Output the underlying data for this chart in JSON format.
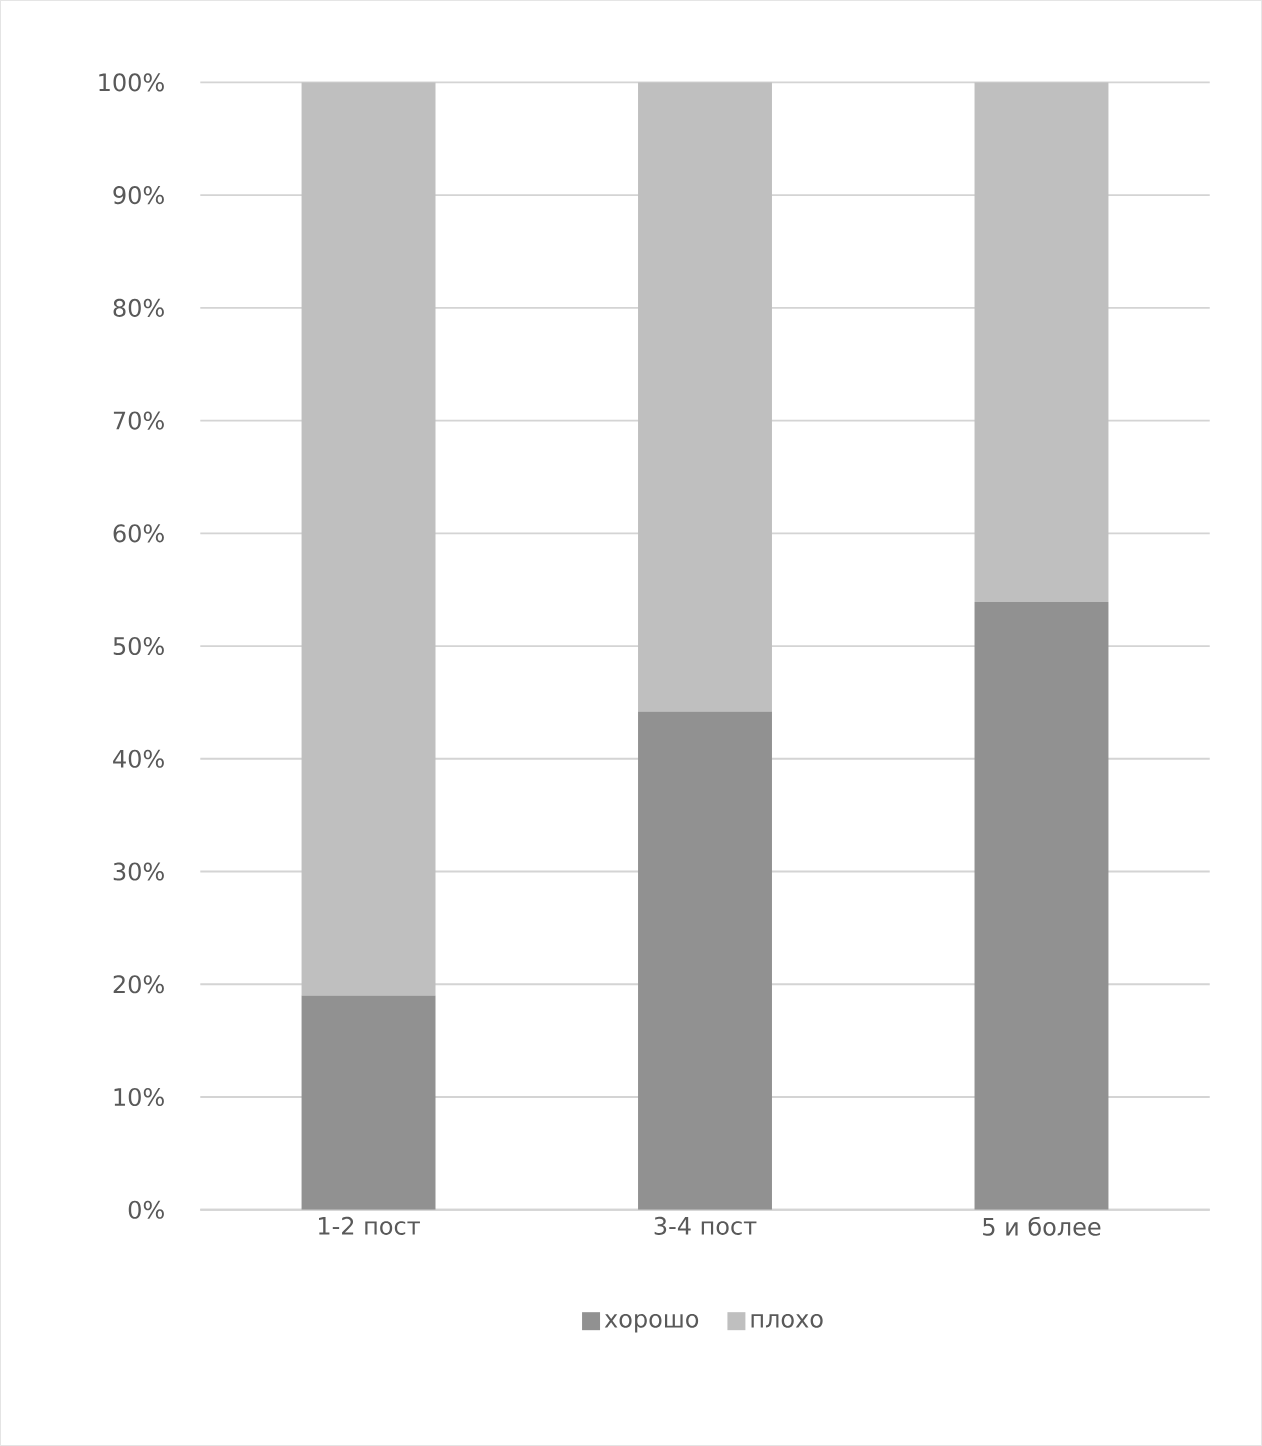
{
  "chart_data": {
    "type": "bar",
    "stacked": true,
    "categories": [
      "1-2 пост",
      "3-4 пост",
      "5 и более"
    ],
    "series": [
      {
        "name": "хорошо",
        "color": "#919191",
        "values": [
          19.0,
          44.2,
          53.9
        ]
      },
      {
        "name": "плохо",
        "color": "#bfbfbf",
        "values": [
          81.0,
          55.8,
          46.1
        ]
      }
    ],
    "ylim": [
      0,
      100
    ],
    "yticks": [
      {
        "value": 0,
        "label": "0%"
      },
      {
        "value": 10,
        "label": "10%"
      },
      {
        "value": 20,
        "label": "20%"
      },
      {
        "value": 30,
        "label": "30%"
      },
      {
        "value": 40,
        "label": "40%"
      },
      {
        "value": 50,
        "label": "50%"
      },
      {
        "value": 60,
        "label": "60%"
      },
      {
        "value": 70,
        "label": "70%"
      },
      {
        "value": 80,
        "label": "80%"
      },
      {
        "value": 90,
        "label": "90%"
      },
      {
        "value": 100,
        "label": "100%"
      }
    ],
    "grid": "y",
    "legend": "bottom"
  }
}
